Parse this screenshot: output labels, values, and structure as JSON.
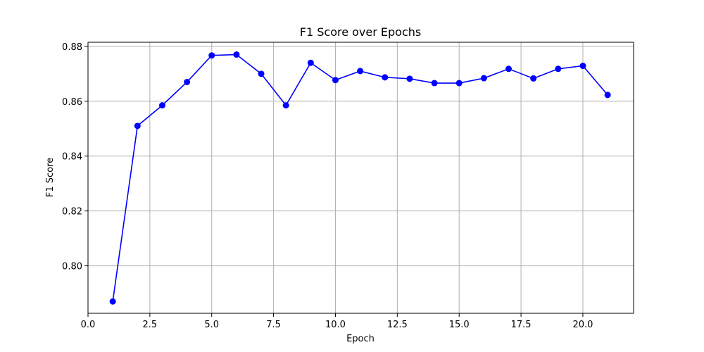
{
  "chart_data": {
    "type": "line",
    "title": "F1 Score over Epochs",
    "xlabel": "Epoch",
    "ylabel": "F1 Score",
    "xlim": [
      0,
      22.05
    ],
    "ylim": [
      0.7827,
      0.8815
    ],
    "xticks": [
      0.0,
      2.5,
      5.0,
      7.5,
      10.0,
      12.5,
      15.0,
      17.5,
      20.0
    ],
    "xtick_labels": [
      "0.0",
      "2.5",
      "5.0",
      "7.5",
      "10.0",
      "12.5",
      "15.0",
      "17.5",
      "20.0"
    ],
    "yticks": [
      0.8,
      0.82,
      0.84,
      0.86,
      0.88
    ],
    "ytick_labels": [
      "0.80",
      "0.82",
      "0.84",
      "0.86",
      "0.88"
    ],
    "grid": true,
    "legend": false,
    "series": [
      {
        "color": "#0000ff",
        "marker": "circle",
        "x": [
          1,
          2,
          3,
          4,
          5,
          6,
          7,
          8,
          9,
          10,
          11,
          12,
          13,
          14,
          15,
          16,
          17,
          18,
          19,
          20,
          21
        ],
        "y": [
          0.787,
          0.851,
          0.8585,
          0.867,
          0.8767,
          0.877,
          0.87,
          0.8585,
          0.874,
          0.8677,
          0.871,
          0.8687,
          0.8682,
          0.8666,
          0.8666,
          0.8684,
          0.8718,
          0.8683,
          0.8718,
          0.8729,
          0.8623
        ]
      }
    ]
  }
}
